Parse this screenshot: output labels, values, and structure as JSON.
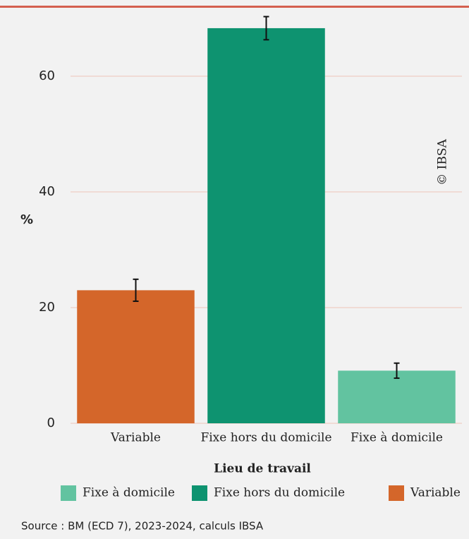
{
  "chart_data": {
    "type": "bar",
    "y_label": "%",
    "categories": [
      "Variable",
      "Fixe hors du domicile",
      "Fixe à domicile"
    ],
    "values": [
      23,
      68.3,
      9.1
    ],
    "errors": [
      1.9,
      2,
      1.3
    ],
    "ylim": [
      0,
      70
    ],
    "yticks": [
      0,
      20,
      40,
      60
    ],
    "grid": true,
    "legend_title": "Lieu de travail",
    "legend": [
      {
        "name": "Fixe à domicile",
        "color": "#62c3a0"
      },
      {
        "name": "Fixe hors du domicile",
        "color": "#0e9370"
      },
      {
        "name": "Variable",
        "color": "#d4662a"
      }
    ],
    "watermark": "© IBSA",
    "source": "Source : BM (ECD 7), 2023-2024, calculs IBSA"
  }
}
